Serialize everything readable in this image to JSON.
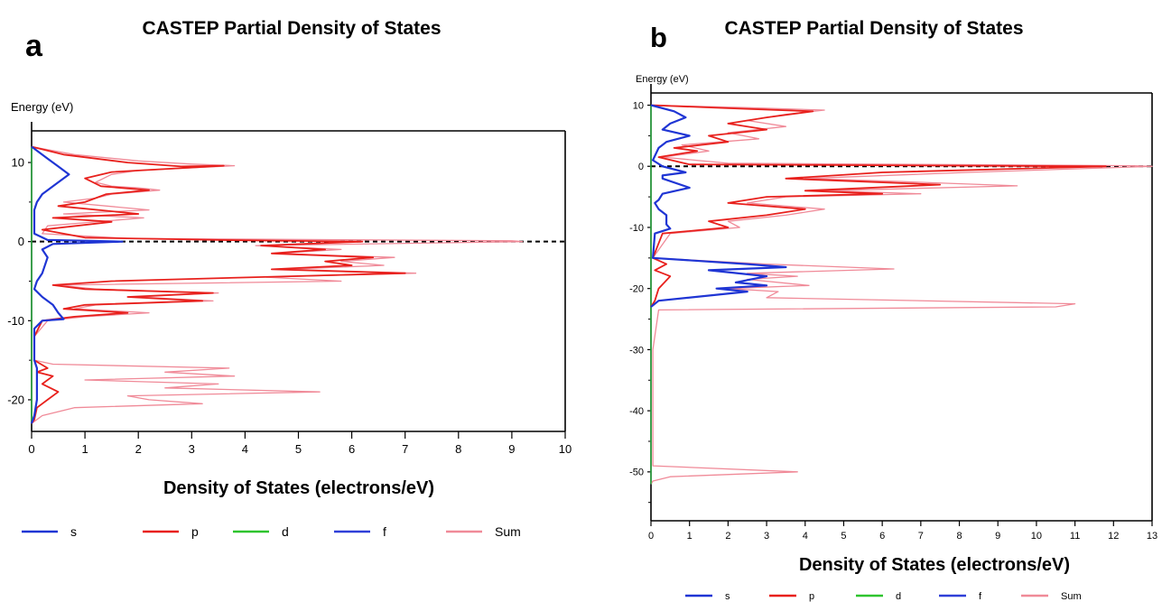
{
  "chart_data": [
    {
      "panel_label": "a",
      "type": "line",
      "title": "CASTEP Partial Density of States",
      "xlabel": "Density of States (electrons/eV)",
      "ylabel": "Energy (eV)",
      "xlim": [
        0,
        10
      ],
      "ylim": [
        -24,
        14
      ],
      "xticks": [
        0,
        1,
        2,
        3,
        4,
        5,
        6,
        7,
        8,
        9,
        10
      ],
      "yticks": [
        10,
        0,
        -10,
        -20
      ],
      "fermi_level": 0,
      "legend": [
        "s",
        "p",
        "d",
        "f",
        "Sum"
      ],
      "series": [
        {
          "name": "s",
          "color": "#1f35d4",
          "points": [
            [
              0,
              12
            ],
            [
              0.3,
              10.5
            ],
            [
              0.5,
              9.5
            ],
            [
              0.7,
              8.5
            ],
            [
              0.5,
              7.5
            ],
            [
              0.3,
              6.5
            ],
            [
              0.2,
              6
            ],
            [
              0.1,
              5
            ],
            [
              0.05,
              4
            ],
            [
              0.05,
              2
            ],
            [
              0.05,
              1
            ],
            [
              0.3,
              0.2
            ],
            [
              1.7,
              0
            ],
            [
              0.4,
              -0.3
            ],
            [
              0.2,
              -1
            ],
            [
              0.3,
              -2
            ],
            [
              0.2,
              -4
            ],
            [
              0.1,
              -5
            ],
            [
              0.05,
              -6
            ],
            [
              0.2,
              -7
            ],
            [
              0.4,
              -8
            ],
            [
              0.5,
              -9
            ],
            [
              0.6,
              -9.8
            ],
            [
              0.2,
              -10
            ],
            [
              0.05,
              -11
            ],
            [
              0.05,
              -15
            ],
            [
              0.1,
              -16
            ],
            [
              0.1,
              -18
            ],
            [
              0.1,
              -20
            ],
            [
              0.05,
              -22
            ],
            [
              0,
              -23
            ]
          ]
        },
        {
          "name": "p",
          "color": "#e8201c",
          "points": [
            [
              0,
              12
            ],
            [
              0.6,
              11
            ],
            [
              1.8,
              10
            ],
            [
              2.8,
              9.5
            ],
            [
              3.6,
              9.6
            ],
            [
              1.5,
              8.8
            ],
            [
              1.0,
              8
            ],
            [
              1.3,
              7
            ],
            [
              2.2,
              6.5
            ],
            [
              1.4,
              6
            ],
            [
              1.0,
              5
            ],
            [
              0.5,
              4.5
            ],
            [
              2.0,
              3.5
            ],
            [
              0.4,
              3
            ],
            [
              1.5,
              2.5
            ],
            [
              0.2,
              1.5
            ],
            [
              1.0,
              0.5
            ],
            [
              3.5,
              0.2
            ],
            [
              6.2,
              0
            ],
            [
              4.3,
              -0.5
            ],
            [
              5.5,
              -1
            ],
            [
              4.5,
              -1.5
            ],
            [
              6.4,
              -2
            ],
            [
              5.5,
              -2.5
            ],
            [
              6.0,
              -3
            ],
            [
              4.5,
              -3.5
            ],
            [
              7.0,
              -4
            ],
            [
              4.2,
              -4.5
            ],
            [
              1.5,
              -5
            ],
            [
              0.4,
              -5.5
            ],
            [
              1.0,
              -6
            ],
            [
              3.4,
              -6.5
            ],
            [
              1.8,
              -7
            ],
            [
              3.2,
              -7.5
            ],
            [
              1.0,
              -8
            ],
            [
              0.6,
              -8.5
            ],
            [
              1.8,
              -9
            ],
            [
              0.8,
              -9.5
            ],
            [
              0.2,
              -10
            ],
            [
              0.05,
              -12
            ],
            [
              0.05,
              -15
            ],
            [
              0.3,
              -16
            ],
            [
              0.1,
              -16.5
            ],
            [
              0.4,
              -17
            ],
            [
              0.2,
              -18
            ],
            [
              0.5,
              -19
            ],
            [
              0.3,
              -20
            ],
            [
              0.1,
              -21
            ],
            [
              0.05,
              -22.5
            ],
            [
              0,
              -23
            ]
          ]
        },
        {
          "name": "d",
          "color": "#2ec42e",
          "points": [
            [
              0,
              12
            ],
            [
              0,
              -23
            ]
          ]
        },
        {
          "name": "f",
          "color": "#2f3fd8",
          "points": [
            [
              0,
              12
            ],
            [
              0,
              -23
            ]
          ]
        },
        {
          "name": "Sum",
          "color": "#f08a98",
          "points": [
            [
              0,
              12
            ],
            [
              0.8,
              11
            ],
            [
              2.0,
              10.2
            ],
            [
              3.0,
              9.8
            ],
            [
              3.8,
              9.6
            ],
            [
              2.0,
              9
            ],
            [
              1.5,
              8.5
            ],
            [
              1.2,
              7.5
            ],
            [
              1.5,
              7
            ],
            [
              2.0,
              6.8
            ],
            [
              2.4,
              6.5
            ],
            [
              1.5,
              6
            ],
            [
              1.2,
              5.5
            ],
            [
              0.6,
              5
            ],
            [
              2.2,
              4
            ],
            [
              0.6,
              3.5
            ],
            [
              2.1,
              3
            ],
            [
              0.3,
              2
            ],
            [
              0.2,
              1
            ],
            [
              1.8,
              0.4
            ],
            [
              9.0,
              0.1
            ],
            [
              9.2,
              0
            ],
            [
              4.2,
              -0.5
            ],
            [
              5.8,
              -1
            ],
            [
              4.6,
              -1.5
            ],
            [
              6.8,
              -2
            ],
            [
              5.8,
              -2.5
            ],
            [
              6.6,
              -3
            ],
            [
              4.8,
              -3.5
            ],
            [
              7.2,
              -4
            ],
            [
              4.4,
              -4.5
            ],
            [
              5.8,
              -5
            ],
            [
              0.5,
              -5.5
            ],
            [
              1.2,
              -6
            ],
            [
              3.5,
              -6.5
            ],
            [
              2.0,
              -7
            ],
            [
              3.4,
              -7.5
            ],
            [
              1.2,
              -8
            ],
            [
              0.8,
              -8.5
            ],
            [
              2.2,
              -9
            ],
            [
              1.0,
              -9.5
            ],
            [
              0.3,
              -10
            ],
            [
              0.05,
              -12
            ],
            [
              0.05,
              -15
            ],
            [
              0.4,
              -15.5
            ],
            [
              3.7,
              -16
            ],
            [
              2.5,
              -16.5
            ],
            [
              3.8,
              -17
            ],
            [
              1.0,
              -17.5
            ],
            [
              3.5,
              -18
            ],
            [
              2.5,
              -18.5
            ],
            [
              5.4,
              -19
            ],
            [
              1.8,
              -19.5
            ],
            [
              2.2,
              -20
            ],
            [
              3.2,
              -20.5
            ],
            [
              0.8,
              -21
            ],
            [
              0.2,
              -22
            ],
            [
              0,
              -23
            ]
          ]
        }
      ]
    },
    {
      "panel_label": "b",
      "type": "line",
      "title": "CASTEP Partial Density of States",
      "xlabel": "Density of States (electrons/eV)",
      "ylabel": "Energy (eV)",
      "xlim": [
        0,
        13
      ],
      "ylim": [
        -58,
        12
      ],
      "xticks": [
        0,
        1,
        2,
        3,
        4,
        5,
        6,
        7,
        8,
        9,
        10,
        11,
        12,
        13
      ],
      "yticks": [
        10,
        0,
        -10,
        -20,
        -30,
        -40,
        -50
      ],
      "fermi_level": 0,
      "legend": [
        "s",
        "p",
        "d",
        "f",
        "Sum"
      ],
      "series": [
        {
          "name": "s",
          "color": "#1f35d4",
          "points": [
            [
              0,
              10
            ],
            [
              0.6,
              9
            ],
            [
              0.9,
              8
            ],
            [
              0.5,
              7
            ],
            [
              0.3,
              6
            ],
            [
              1.0,
              5
            ],
            [
              0.4,
              4
            ],
            [
              0.2,
              3
            ],
            [
              0.05,
              1
            ],
            [
              0.3,
              0
            ],
            [
              0.9,
              -1
            ],
            [
              0.3,
              -1.5
            ],
            [
              0.3,
              -2
            ],
            [
              1.0,
              -3.5
            ],
            [
              0.3,
              -4.5
            ],
            [
              0.2,
              -5.5
            ],
            [
              0.1,
              -6
            ],
            [
              0.2,
              -7
            ],
            [
              0.4,
              -8
            ],
            [
              0.4,
              -9.5
            ],
            [
              0.5,
              -10.2
            ],
            [
              0.1,
              -11
            ],
            [
              0.05,
              -15
            ],
            [
              2.5,
              -16
            ],
            [
              3.5,
              -16.5
            ],
            [
              1.5,
              -17
            ],
            [
              3.0,
              -18
            ],
            [
              2.2,
              -19
            ],
            [
              3.0,
              -19.5
            ],
            [
              1.7,
              -20
            ],
            [
              2.5,
              -20.5
            ],
            [
              0.2,
              -22
            ],
            [
              0,
              -23
            ]
          ]
        },
        {
          "name": "p",
          "color": "#e8201c",
          "points": [
            [
              0,
              10
            ],
            [
              2.0,
              9.5
            ],
            [
              4.2,
              9
            ],
            [
              3.0,
              8
            ],
            [
              2.0,
              7
            ],
            [
              3.0,
              6
            ],
            [
              1.5,
              5
            ],
            [
              2.0,
              4
            ],
            [
              0.6,
              3
            ],
            [
              1.2,
              2.5
            ],
            [
              0.2,
              1.5
            ],
            [
              1.0,
              0.3
            ],
            [
              11.8,
              0
            ],
            [
              6.0,
              -1
            ],
            [
              3.5,
              -2
            ],
            [
              5.5,
              -2.5
            ],
            [
              7.5,
              -3
            ],
            [
              4.0,
              -4
            ],
            [
              6.0,
              -4.5
            ],
            [
              3.0,
              -5
            ],
            [
              2.0,
              -6
            ],
            [
              4.0,
              -7
            ],
            [
              3.0,
              -8
            ],
            [
              1.5,
              -9
            ],
            [
              2.0,
              -10
            ],
            [
              0.3,
              -11
            ],
            [
              0.05,
              -15
            ],
            [
              0.4,
              -16
            ],
            [
              0.1,
              -17
            ],
            [
              0.5,
              -18
            ],
            [
              0.2,
              -20
            ],
            [
              0.1,
              -22
            ],
            [
              0,
              -23
            ]
          ]
        },
        {
          "name": "d",
          "color": "#2ec42e",
          "points": [
            [
              0,
              10
            ],
            [
              0,
              -52
            ]
          ]
        },
        {
          "name": "f",
          "color": "#2f3fd8",
          "points": [
            [
              0,
              10
            ],
            [
              0,
              -52
            ]
          ]
        },
        {
          "name": "Sum",
          "color": "#f08a98",
          "points": [
            [
              0,
              10
            ],
            [
              2.5,
              9.6
            ],
            [
              4.5,
              9.2
            ],
            [
              3.5,
              8.5
            ],
            [
              2.5,
              7.5
            ],
            [
              3.5,
              6.5
            ],
            [
              2.0,
              5.5
            ],
            [
              2.8,
              4.5
            ],
            [
              0.8,
              3.5
            ],
            [
              1.5,
              2.5
            ],
            [
              0.3,
              1.5
            ],
            [
              2.0,
              0.5
            ],
            [
              12.5,
              0.1
            ],
            [
              13.0,
              0
            ],
            [
              8.2,
              -1
            ],
            [
              4.0,
              -2
            ],
            [
              6.5,
              -2.5
            ],
            [
              9.5,
              -3.2
            ],
            [
              4.5,
              -4
            ],
            [
              7.0,
              -4.5
            ],
            [
              3.5,
              -5
            ],
            [
              2.5,
              -6
            ],
            [
              4.5,
              -7
            ],
            [
              3.5,
              -8
            ],
            [
              2.0,
              -9
            ],
            [
              2.3,
              -10
            ],
            [
              0.5,
              -11
            ],
            [
              0.05,
              -15
            ],
            [
              3.0,
              -16
            ],
            [
              6.3,
              -16.8
            ],
            [
              2.5,
              -17.5
            ],
            [
              3.8,
              -18
            ],
            [
              2.5,
              -18.5
            ],
            [
              4.1,
              -19.5
            ],
            [
              2.0,
              -20
            ],
            [
              3.3,
              -20.5
            ],
            [
              3.0,
              -21.5
            ],
            [
              11.0,
              -22.5
            ],
            [
              10.5,
              -23
            ],
            [
              0.2,
              -23.5
            ],
            [
              0.05,
              -30
            ],
            [
              0.05,
              -49
            ],
            [
              3.8,
              -50
            ],
            [
              0.5,
              -50.8
            ],
            [
              0.05,
              -51.5
            ],
            [
              0,
              -52
            ]
          ]
        }
      ]
    }
  ]
}
